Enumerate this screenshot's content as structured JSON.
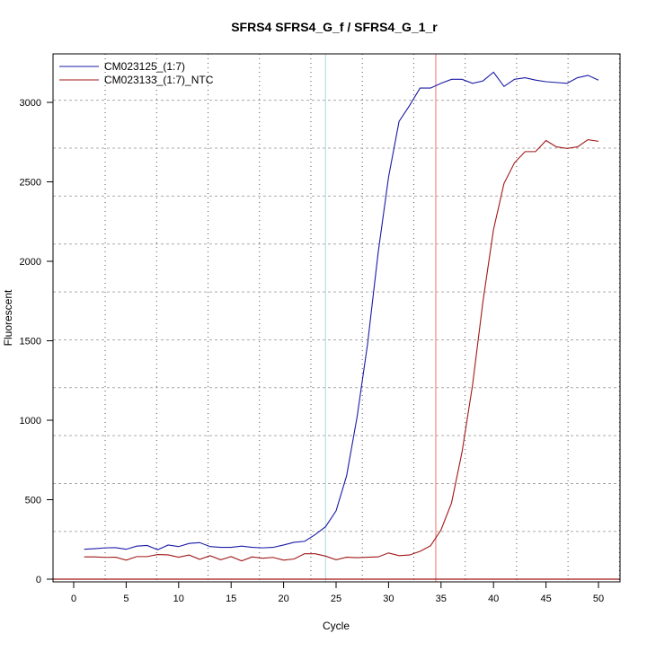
{
  "chart_data": {
    "type": "line",
    "title": "SFRS4  SFRS4_G_f / SFRS4_G_1_r",
    "xlabel": "Cycle",
    "ylabel": "Fluorescent",
    "xlim": [
      -2,
      52
    ],
    "ylim": [
      -20,
      3300
    ],
    "xticks": [
      0,
      5,
      10,
      15,
      20,
      25,
      30,
      35,
      40,
      45,
      50
    ],
    "yticks": [
      0,
      500,
      1000,
      1500,
      2000,
      2500,
      3000
    ],
    "legend_position": "top-left",
    "grid": true,
    "x": [
      1,
      2,
      3,
      4,
      5,
      6,
      7,
      8,
      9,
      10,
      11,
      12,
      13,
      14,
      15,
      16,
      17,
      18,
      19,
      20,
      21,
      22,
      23,
      24,
      25,
      26,
      27,
      28,
      29,
      30,
      31,
      32,
      33,
      34,
      35,
      36,
      37,
      38,
      39,
      40,
      41,
      42,
      43,
      44,
      45,
      46,
      47,
      48,
      49,
      50
    ],
    "series": [
      {
        "name": "CM023125_(1:7)",
        "color": "#1a1aa6",
        "values": [
          188,
          192,
          197,
          198,
          188,
          208,
          212,
          185,
          215,
          205,
          225,
          230,
          205,
          200,
          200,
          208,
          200,
          197,
          200,
          215,
          232,
          238,
          280,
          330,
          430,
          650,
          1020,
          1480,
          2050,
          2530,
          2880,
          2980,
          3090,
          3090,
          3120,
          3145,
          3145,
          3120,
          3135,
          3190,
          3100,
          3145,
          3155,
          3140,
          3130,
          3125,
          3120,
          3155,
          3170,
          3140
        ]
      },
      {
        "name": "CM023133_(1:7)_NTC",
        "color": "#a01818",
        "values": [
          140,
          140,
          137,
          138,
          120,
          142,
          142,
          155,
          153,
          138,
          152,
          125,
          148,
          122,
          142,
          115,
          140,
          132,
          137,
          120,
          127,
          160,
          160,
          145,
          122,
          138,
          135,
          138,
          140,
          165,
          148,
          152,
          175,
          210,
          310,
          480,
          800,
          1220,
          1750,
          2200,
          2490,
          2620,
          2690,
          2690,
          2760,
          2720,
          2710,
          2720,
          2765,
          2755
        ]
      }
    ],
    "reference_lines": {
      "vertical": [
        {
          "x": 24,
          "color": "#b8dfe4"
        },
        {
          "x": 34.5,
          "color": "#f08a8a"
        }
      ],
      "horizontal": [
        {
          "y": 0,
          "color": "#a01818"
        }
      ]
    }
  }
}
